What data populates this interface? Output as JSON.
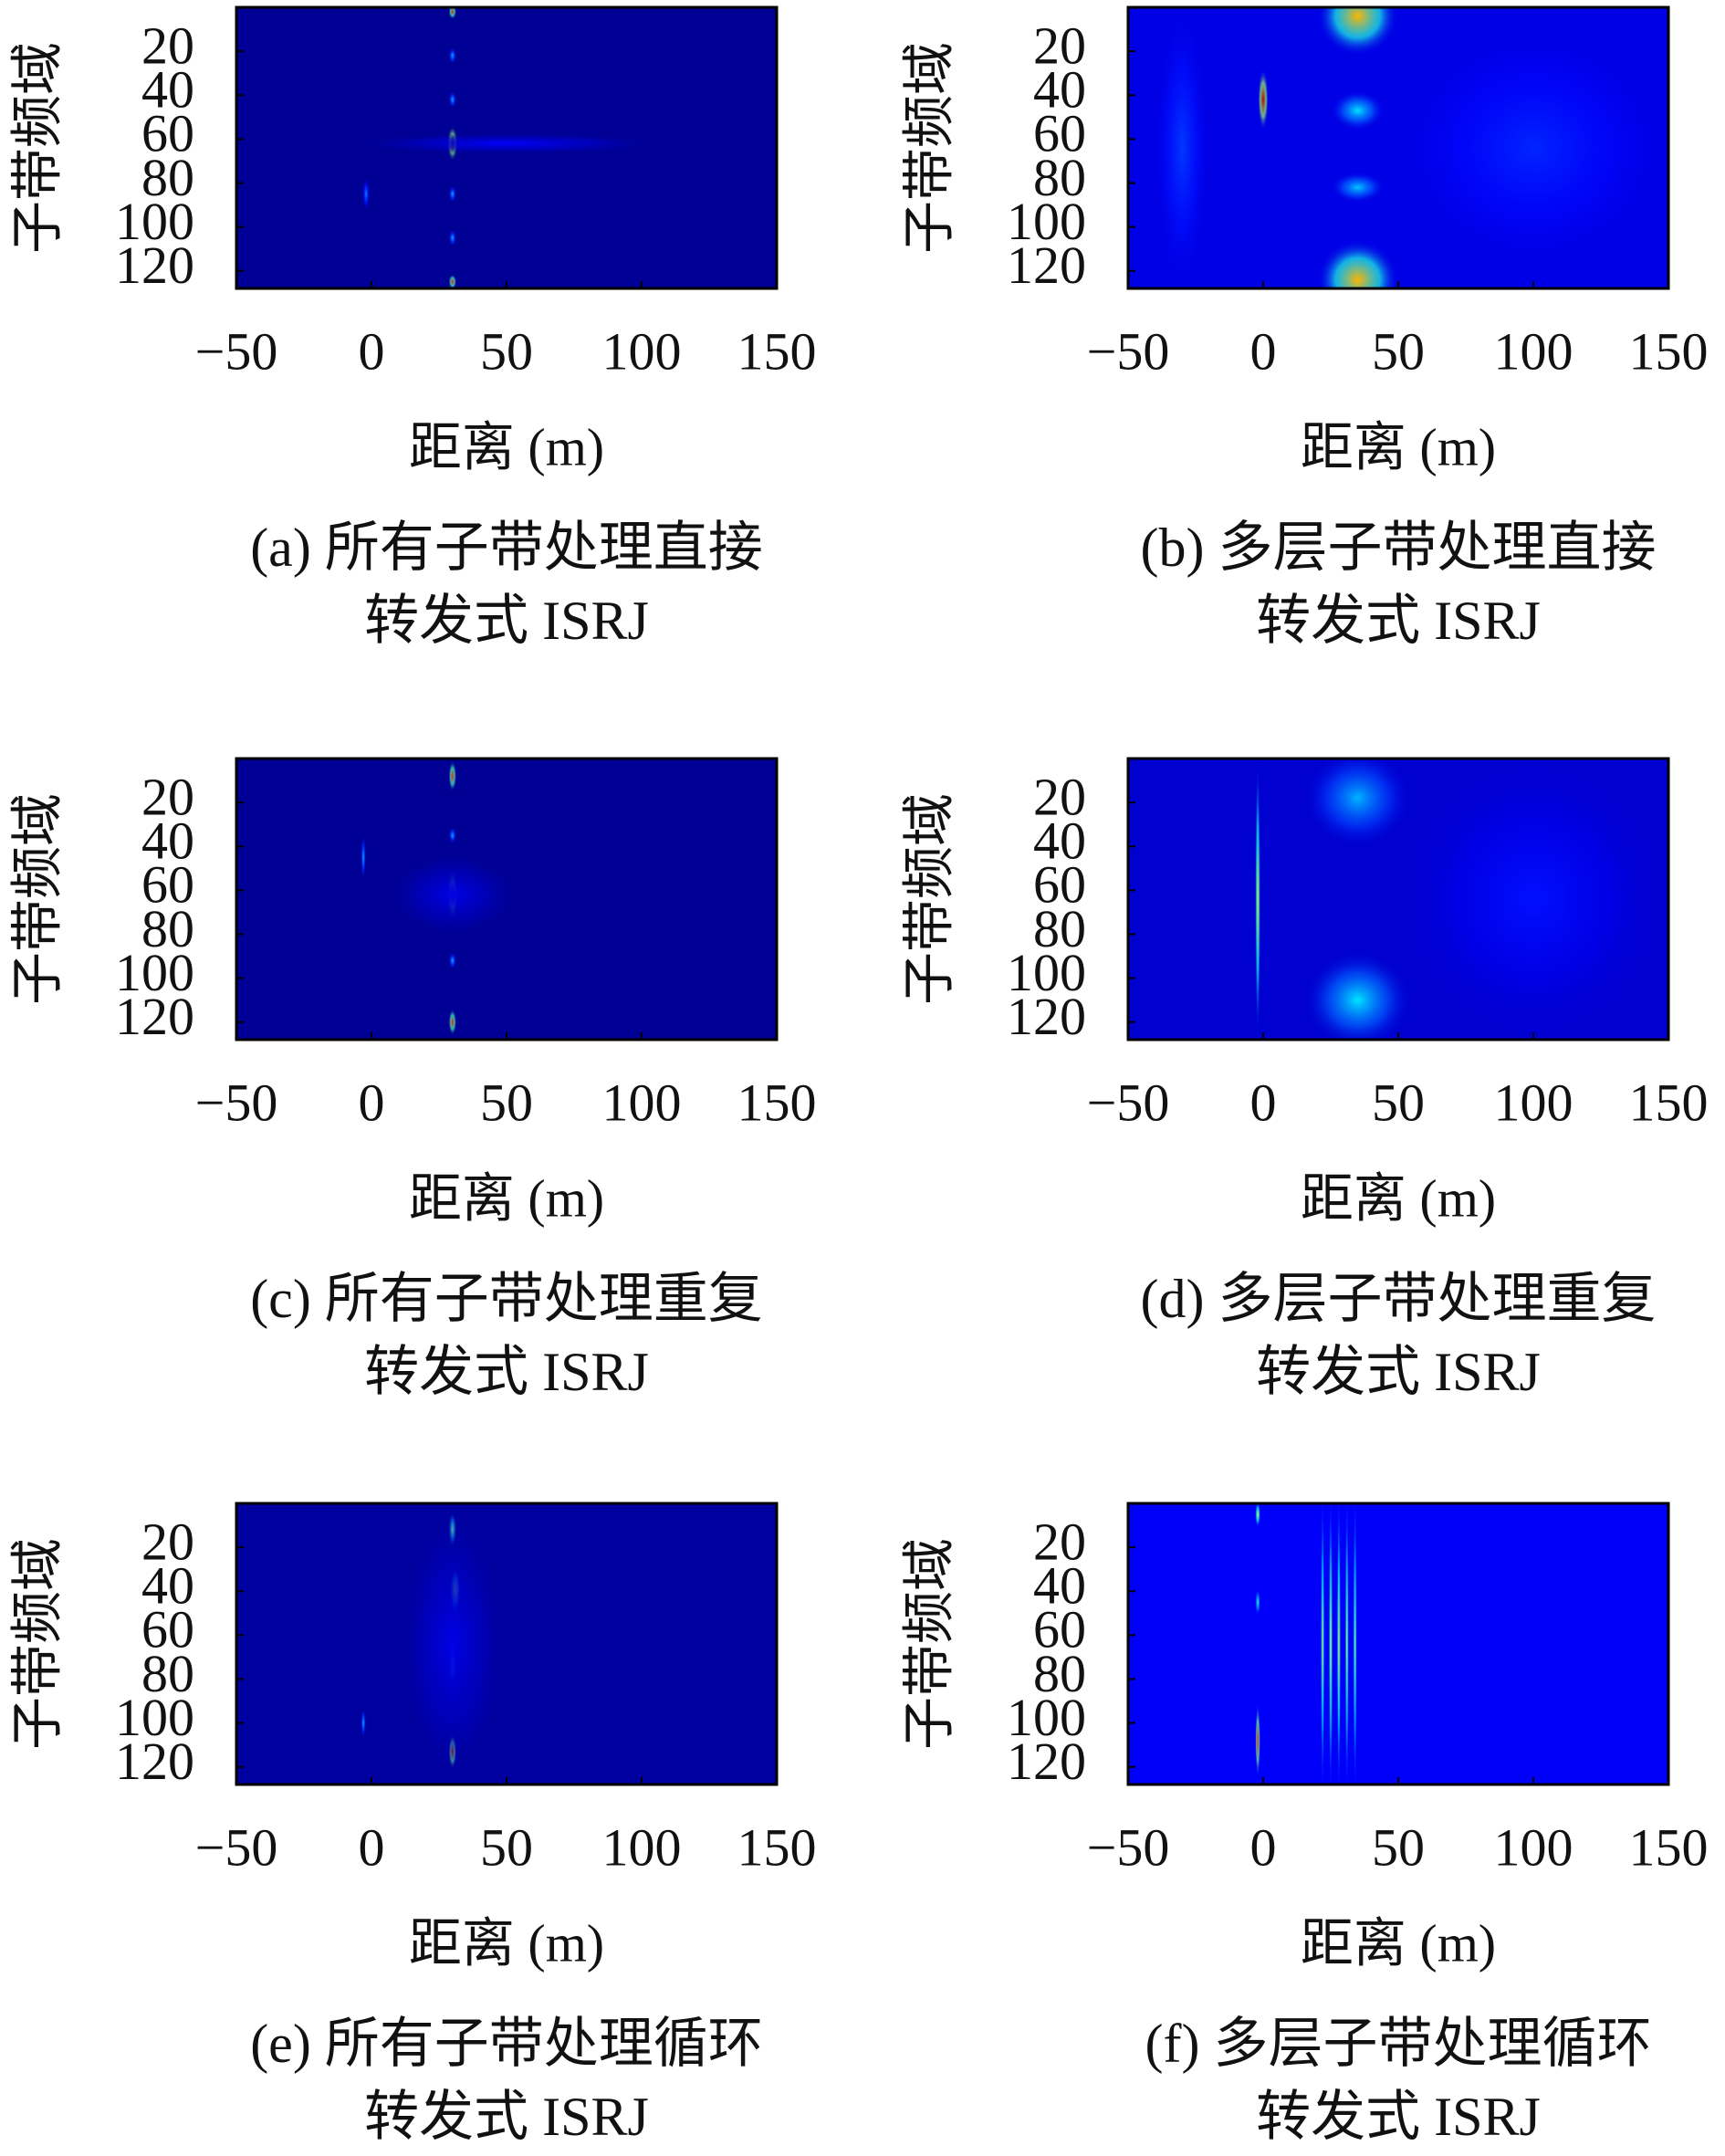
{
  "colormap": "jet",
  "charts": [
    {
      "type": "heatmap",
      "xlabel": "距离 (m)",
      "ylabel": "子带频域",
      "caption": [
        "(a) 所有子带处理直接",
        "转发式 ISRJ"
      ],
      "xlim": [
        -50,
        150
      ],
      "ylim": [
        0,
        128
      ],
      "xticks": [
        {
          "value": -50,
          "label": "−50"
        },
        0,
        50,
        100,
        150
      ],
      "yticks": [
        20,
        40,
        60,
        80,
        100,
        120
      ],
      "background": 0.02,
      "spots": [
        {
          "x": 30,
          "y": 2,
          "w": 3,
          "h": 7,
          "intensity": 0.85
        },
        {
          "x": 30,
          "y": 62,
          "w": 4,
          "h": 16,
          "intensity": 1.0
        },
        {
          "x": 30,
          "y": 125,
          "w": 3,
          "h": 7,
          "intensity": 0.85
        },
        {
          "x": 30,
          "y": 22,
          "w": 3,
          "h": 8,
          "intensity": 0.3
        },
        {
          "x": 30,
          "y": 42,
          "w": 3,
          "h": 8,
          "intensity": 0.3
        },
        {
          "x": 30,
          "y": 85,
          "w": 3,
          "h": 8,
          "intensity": 0.3
        },
        {
          "x": 30,
          "y": 105,
          "w": 3,
          "h": 8,
          "intensity": 0.3
        },
        {
          "x": 50,
          "y": 62,
          "w": 120,
          "h": 10,
          "intensity": 0.12
        },
        {
          "x": -2,
          "y": 85,
          "w": 3,
          "h": 16,
          "intensity": 0.25
        }
      ]
    },
    {
      "type": "heatmap",
      "xlabel": "距离 (m)",
      "ylabel": "子带频域",
      "caption": [
        "(b) 多层子带处理直接",
        "转发式 ISRJ"
      ],
      "xlim": [
        -50,
        150
      ],
      "ylim": [
        0,
        128
      ],
      "xticks": [
        {
          "value": -50,
          "label": "−50"
        },
        0,
        50,
        100,
        150
      ],
      "yticks": [
        20,
        40,
        60,
        80,
        100,
        120
      ],
      "background": 0.1,
      "spots": [
        {
          "x": 0,
          "y": 42,
          "w": 4,
          "h": 28,
          "intensity": 0.95
        },
        {
          "x": 35,
          "y": 4,
          "w": 30,
          "h": 36,
          "intensity": 0.7
        },
        {
          "x": 35,
          "y": 124,
          "w": 30,
          "h": 36,
          "intensity": 0.7
        },
        {
          "x": 35,
          "y": 47,
          "w": 20,
          "h": 18,
          "intensity": 0.35
        },
        {
          "x": 35,
          "y": 82,
          "w": 20,
          "h": 14,
          "intensity": 0.32
        },
        {
          "x": -30,
          "y": 64,
          "w": 20,
          "h": 128,
          "intensity": 0.18
        },
        {
          "x": 100,
          "y": 64,
          "w": 100,
          "h": 110,
          "intensity": 0.16
        }
      ]
    },
    {
      "type": "heatmap",
      "xlabel": "距离 (m)",
      "ylabel": "子带频域",
      "caption": [
        "(c) 所有子带处理重复",
        "转发式 ISRJ"
      ],
      "xlim": [
        -50,
        150
      ],
      "ylim": [
        0,
        128
      ],
      "xticks": [
        {
          "value": -50,
          "label": "−50"
        },
        0,
        50,
        100,
        150
      ],
      "yticks": [
        20,
        40,
        60,
        80,
        100,
        120
      ],
      "background": 0.02,
      "spots": [
        {
          "x": 30,
          "y": 8,
          "w": 3,
          "h": 14,
          "intensity": 0.85
        },
        {
          "x": 30,
          "y": 62,
          "w": 4,
          "h": 22,
          "intensity": 0.95
        },
        {
          "x": 30,
          "y": 120,
          "w": 3,
          "h": 12,
          "intensity": 0.85
        },
        {
          "x": 30,
          "y": 35,
          "w": 3,
          "h": 8,
          "intensity": 0.3
        },
        {
          "x": 30,
          "y": 92,
          "w": 3,
          "h": 8,
          "intensity": 0.3
        },
        {
          "x": -3,
          "y": 45,
          "w": 2,
          "h": 22,
          "intensity": 0.3
        },
        {
          "x": 30,
          "y": 62,
          "w": 50,
          "h": 40,
          "intensity": 0.1
        }
      ]
    },
    {
      "type": "heatmap",
      "xlabel": "距离 (m)",
      "ylabel": "子带频域",
      "caption": [
        "(d) 多层子带处理重复",
        "转发式 ISRJ"
      ],
      "xlim": [
        -50,
        150
      ],
      "ylim": [
        0,
        128
      ],
      "xticks": [
        {
          "value": -50,
          "label": "−50"
        },
        0,
        50,
        100,
        150
      ],
      "yticks": [
        20,
        40,
        60,
        80,
        100,
        120
      ],
      "background": 0.08,
      "spots": [
        {
          "x": -2,
          "y": 64,
          "w": 2,
          "h": 128,
          "intensity": 0.65
        },
        {
          "x": 35,
          "y": 18,
          "w": 40,
          "h": 45,
          "intensity": 0.3
        },
        {
          "x": 35,
          "y": 110,
          "w": 40,
          "h": 45,
          "intensity": 0.35
        },
        {
          "x": 100,
          "y": 64,
          "w": 100,
          "h": 128,
          "intensity": 0.14
        }
      ]
    },
    {
      "type": "heatmap",
      "xlabel": "距离 (m)",
      "ylabel": "子带频域",
      "caption": [
        "(e) 所有子带处理循环",
        "转发式 ISRJ"
      ],
      "xlim": [
        -50,
        150
      ],
      "ylim": [
        0,
        128
      ],
      "xticks": [
        {
          "value": -50,
          "label": "−50"
        },
        0,
        50,
        100,
        150
      ],
      "yticks": [
        20,
        40,
        60,
        80,
        100,
        120
      ],
      "background": 0.03,
      "spots": [
        {
          "x": 30,
          "y": 12,
          "w": 3,
          "h": 16,
          "intensity": 0.5
        },
        {
          "x": 31,
          "y": 40,
          "w": 4,
          "h": 22,
          "intensity": 0.6
        },
        {
          "x": 30,
          "y": 72,
          "w": 3,
          "h": 22,
          "intensity": 0.5
        },
        {
          "x": 30,
          "y": 113,
          "w": 3,
          "h": 16,
          "intensity": 0.9
        },
        {
          "x": -3,
          "y": 100,
          "w": 2,
          "h": 14,
          "intensity": 0.3
        },
        {
          "x": 30,
          "y": 64,
          "w": 40,
          "h": 128,
          "intensity": 0.1
        }
      ]
    },
    {
      "type": "heatmap",
      "xlabel": "距离 (m)",
      "ylabel": "子带频域",
      "caption": [
        "(f) 多层子带处理循环",
        "转发式 ISRJ"
      ],
      "xlim": [
        -50,
        150
      ],
      "ylim": [
        0,
        128
      ],
      "xticks": [
        {
          "value": -50,
          "label": "−50"
        },
        0,
        50,
        100,
        150
      ],
      "yticks": [
        20,
        40,
        60,
        80,
        100,
        120
      ],
      "background": 0.12,
      "spots": [
        {
          "x": -2,
          "y": 5,
          "w": 2,
          "h": 12,
          "intensity": 0.6
        },
        {
          "x": -2,
          "y": 45,
          "w": 2,
          "h": 12,
          "intensity": 0.4
        },
        {
          "x": -2,
          "y": 108,
          "w": 2,
          "h": 34,
          "intensity": 0.85
        },
        {
          "x": 22,
          "y": 64,
          "w": 1.5,
          "h": 140,
          "intensity": 0.55
        },
        {
          "x": 25,
          "y": 64,
          "w": 1.5,
          "h": 140,
          "intensity": 0.6
        },
        {
          "x": 28,
          "y": 64,
          "w": 1.5,
          "h": 140,
          "intensity": 0.6
        },
        {
          "x": 31,
          "y": 64,
          "w": 1.5,
          "h": 140,
          "intensity": 0.55
        },
        {
          "x": 34,
          "y": 64,
          "w": 1.5,
          "h": 140,
          "intensity": 0.5
        }
      ]
    }
  ]
}
